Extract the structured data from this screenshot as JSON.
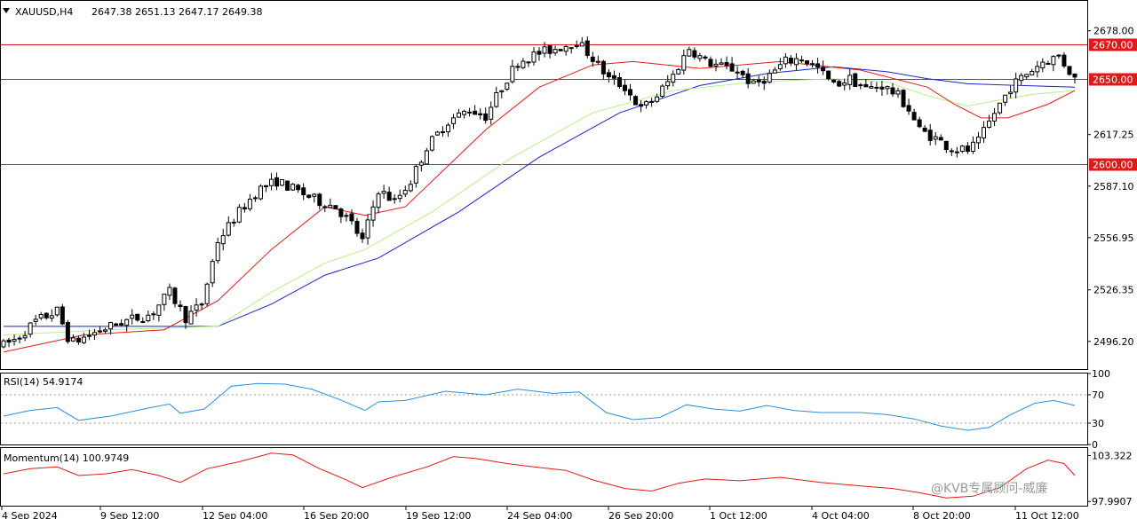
{
  "header": {
    "symbol": "XAUUSD,H4",
    "ohlc": "2647.38 2651.13 2647.17 2649.38"
  },
  "colors": {
    "level": "#e11919",
    "ma_fast": "#e11919",
    "ma_mid": "#b8f08c",
    "ma_slow": "#1a22d0",
    "rsi": "#2b8fd6",
    "momentum": "#e11919"
  },
  "chart_data": [
    {
      "type": "candlestick",
      "ylim": [
        2480,
        2695
      ],
      "yticks": [
        "2678.00",
        "2617.25",
        "2587.10",
        "2556.95",
        "2526.35",
        "2496.20"
      ],
      "ytick_values": [
        2678.0,
        2617.25,
        2587.1,
        2556.95,
        2526.35,
        2496.2
      ],
      "level_lines": [
        {
          "value": 2670.0,
          "label": "2670.00"
        },
        {
          "value": 2650.0,
          "label": "2650.00"
        },
        {
          "value": 2600.0,
          "label": "2600.00"
        }
      ],
      "x_labels": [
        "4 Sep 2024",
        "9 Sep 12:00",
        "12 Sep 04:00",
        "16 Sep 20:00",
        "19 Sep 12:00",
        "24 Sep 04:00",
        "26 Sep 20:00",
        "1 Oct 12:00",
        "4 Oct 04:00",
        "8 Oct 20:00",
        "11 Oct 12:00"
      ],
      "anchors": [
        [
          0,
          2494
        ],
        [
          5,
          2498
        ],
        [
          12,
          2508
        ],
        [
          20,
          2514
        ],
        [
          25,
          2495
        ],
        [
          35,
          2502
        ],
        [
          45,
          2508
        ],
        [
          55,
          2512
        ],
        [
          62,
          2525
        ],
        [
          68,
          2510
        ],
        [
          74,
          2518
        ],
        [
          80,
          2555
        ],
        [
          88,
          2572
        ],
        [
          95,
          2585
        ],
        [
          102,
          2590
        ],
        [
          110,
          2584
        ],
        [
          118,
          2578
        ],
        [
          124,
          2575
        ],
        [
          130,
          2565
        ],
        [
          134,
          2555
        ],
        [
          140,
          2585
        ],
        [
          146,
          2578
        ],
        [
          152,
          2590
        ],
        [
          158,
          2610
        ],
        [
          166,
          2625
        ],
        [
          174,
          2632
        ],
        [
          180,
          2628
        ],
        [
          186,
          2645
        ],
        [
          192,
          2660
        ],
        [
          200,
          2665
        ],
        [
          207,
          2668
        ],
        [
          214,
          2672
        ],
        [
          220,
          2662
        ],
        [
          226,
          2650
        ],
        [
          232,
          2645
        ],
        [
          238,
          2632
        ],
        [
          244,
          2640
        ],
        [
          250,
          2652
        ],
        [
          256,
          2668
        ],
        [
          262,
          2660
        ],
        [
          268,
          2657
        ],
        [
          274,
          2655
        ],
        [
          280,
          2646
        ],
        [
          286,
          2652
        ],
        [
          292,
          2660
        ],
        [
          298,
          2662
        ],
        [
          304,
          2656
        ],
        [
          310,
          2646
        ],
        [
          316,
          2650
        ],
        [
          322,
          2644
        ],
        [
          328,
          2646
        ],
        [
          334,
          2640
        ],
        [
          338,
          2632
        ],
        [
          342,
          2620
        ],
        [
          348,
          2615
        ],
        [
          354,
          2609
        ],
        [
          360,
          2608
        ],
        [
          364,
          2613
        ],
        [
          370,
          2630
        ],
        [
          376,
          2645
        ],
        [
          382,
          2653
        ],
        [
          388,
          2660
        ],
        [
          394,
          2663
        ],
        [
          400,
          2650
        ]
      ],
      "ma_fast": [
        [
          0,
          2490
        ],
        [
          30,
          2500
        ],
        [
          60,
          2503
        ],
        [
          80,
          2520
        ],
        [
          100,
          2550
        ],
        [
          120,
          2575
        ],
        [
          135,
          2570
        ],
        [
          150,
          2575
        ],
        [
          180,
          2620
        ],
        [
          200,
          2645
        ],
        [
          220,
          2658
        ],
        [
          235,
          2660
        ],
        [
          260,
          2656
        ],
        [
          290,
          2660
        ],
        [
          320,
          2655
        ],
        [
          345,
          2645
        ],
        [
          355,
          2635
        ],
        [
          365,
          2627
        ],
        [
          375,
          2627
        ],
        [
          390,
          2635
        ],
        [
          400,
          2643
        ]
      ],
      "ma_mid": [
        [
          0,
          2500
        ],
        [
          40,
          2503
        ],
        [
          80,
          2505
        ],
        [
          100,
          2525
        ],
        [
          120,
          2542
        ],
        [
          135,
          2550
        ],
        [
          160,
          2572
        ],
        [
          190,
          2604
        ],
        [
          220,
          2630
        ],
        [
          250,
          2643
        ],
        [
          280,
          2648
        ],
        [
          310,
          2650
        ],
        [
          330,
          2648
        ],
        [
          345,
          2640
        ],
        [
          360,
          2634
        ],
        [
          370,
          2637
        ],
        [
          385,
          2641
        ],
        [
          400,
          2643
        ]
      ],
      "ma_slow": [
        [
          0,
          2505
        ],
        [
          50,
          2505
        ],
        [
          80,
          2505
        ],
        [
          100,
          2518
        ],
        [
          120,
          2535
        ],
        [
          140,
          2545
        ],
        [
          170,
          2572
        ],
        [
          200,
          2604
        ],
        [
          230,
          2630
        ],
        [
          260,
          2646
        ],
        [
          285,
          2653
        ],
        [
          310,
          2657
        ],
        [
          330,
          2654
        ],
        [
          345,
          2650
        ],
        [
          360,
          2647
        ],
        [
          380,
          2646
        ],
        [
          400,
          2645
        ]
      ]
    },
    {
      "type": "line",
      "title": "RSI(14) 54.9174",
      "ylim": [
        0,
        100
      ],
      "yticks": [
        "100",
        "70",
        "30",
        "0"
      ],
      "ytick_values": [
        100,
        70,
        30,
        0
      ],
      "dashed_levels": [
        70,
        30
      ],
      "series": [
        {
          "values": [
            [
              0,
              40
            ],
            [
              10,
              48
            ],
            [
              20,
              52
            ],
            [
              28,
              34
            ],
            [
              40,
              40
            ],
            [
              55,
              52
            ],
            [
              62,
              57
            ],
            [
              66,
              44
            ],
            [
              75,
              50
            ],
            [
              85,
              82
            ],
            [
              95,
              86
            ],
            [
              105,
              85
            ],
            [
              115,
              78
            ],
            [
              125,
              64
            ],
            [
              135,
              48
            ],
            [
              140,
              60
            ],
            [
              150,
              62
            ],
            [
              165,
              75
            ],
            [
              180,
              70
            ],
            [
              192,
              78
            ],
            [
              205,
              72
            ],
            [
              215,
              74
            ],
            [
              225,
              45
            ],
            [
              235,
              35
            ],
            [
              245,
              38
            ],
            [
              255,
              56
            ],
            [
              265,
              50
            ],
            [
              275,
              47
            ],
            [
              285,
              55
            ],
            [
              295,
              48
            ],
            [
              305,
              45
            ],
            [
              320,
              45
            ],
            [
              330,
              42
            ],
            [
              340,
              36
            ],
            [
              350,
              26
            ],
            [
              360,
              20
            ],
            [
              368,
              24
            ],
            [
              376,
              42
            ],
            [
              385,
              58
            ],
            [
              392,
              62
            ],
            [
              400,
              55
            ]
          ]
        }
      ]
    },
    {
      "type": "line",
      "title": "Momentum(14) 100.9749",
      "yticks": [
        "103.322",
        "97.9907"
      ],
      "ytick_values": [
        103.322,
        97.9907
      ],
      "ylim": [
        97.5,
        104.2
      ],
      "series": [
        {
          "values": [
            [
              0,
              101.2
            ],
            [
              10,
              101.8
            ],
            [
              20,
              102.0
            ],
            [
              28,
              101.0
            ],
            [
              38,
              101.2
            ],
            [
              48,
              101.7
            ],
            [
              58,
              101.0
            ],
            [
              66,
              100.2
            ],
            [
              76,
              101.8
            ],
            [
              88,
              102.6
            ],
            [
              100,
              103.6
            ],
            [
              108,
              103.4
            ],
            [
              118,
              101.8
            ],
            [
              128,
              100.5
            ],
            [
              134,
              99.6
            ],
            [
              145,
              100.8
            ],
            [
              158,
              102.0
            ],
            [
              168,
              103.2
            ],
            [
              176,
              103.0
            ],
            [
              188,
              102.4
            ],
            [
              198,
              102.0
            ],
            [
              210,
              101.6
            ],
            [
              220,
              100.5
            ],
            [
              232,
              99.5
            ],
            [
              242,
              99.2
            ],
            [
              252,
              100.1
            ],
            [
              262,
              100.6
            ],
            [
              275,
              100.4
            ],
            [
              290,
              100.8
            ],
            [
              305,
              100.2
            ],
            [
              320,
              99.8
            ],
            [
              332,
              99.5
            ],
            [
              342,
              99.0
            ],
            [
              352,
              98.4
            ],
            [
              362,
              98.6
            ],
            [
              372,
              99.6
            ],
            [
              382,
              101.8
            ],
            [
              390,
              102.8
            ],
            [
              396,
              102.4
            ],
            [
              400,
              101.0
            ]
          ]
        }
      ]
    }
  ],
  "watermark": "@KVB专属顾问-威廉"
}
